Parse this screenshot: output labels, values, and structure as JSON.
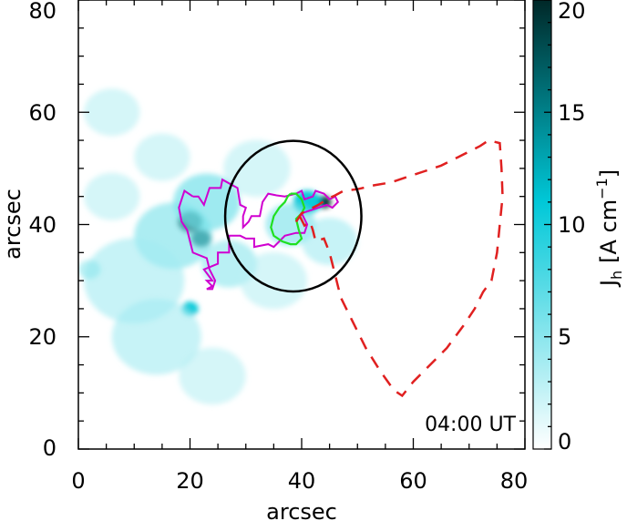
{
  "chart_data": {
    "type": "heatmap",
    "xlabel": "arcsec",
    "ylabel": "arcsec",
    "xlim": [
      0,
      80
    ],
    "ylim": [
      0,
      80
    ],
    "x_ticks": [
      "0",
      "20",
      "40",
      "60",
      "80"
    ],
    "y_ticks": [
      "0",
      "20",
      "40",
      "60",
      "80"
    ],
    "annotation": "04:00 UT",
    "colorbar": {
      "label_main": "J",
      "label_sub": "h",
      "label_units": "[A cm",
      "label_exp": "−1",
      "label_close": "]",
      "range": [
        0,
        20
      ],
      "ticks": [
        "0",
        "5",
        "10",
        "15",
        "20"
      ],
      "color_low": "#ffffff",
      "color_mid": "#00c8d8",
      "color_high": "#002828"
    },
    "blobs": [
      {
        "x": 20,
        "y": 40.5,
        "r": 2.2,
        "v": 20
      },
      {
        "x": 22,
        "y": 37.5,
        "r": 1.8,
        "v": 17
      },
      {
        "x": 20,
        "y": 25,
        "r": 1.5,
        "v": 11
      },
      {
        "x": 44,
        "y": 44,
        "r": 1.3,
        "v": 22
      },
      {
        "x": 41,
        "y": 44,
        "r": 2.5,
        "v": 11
      },
      {
        "x": 38,
        "y": 40,
        "r": 4.5,
        "v": 6
      },
      {
        "x": 23,
        "y": 44,
        "r": 6,
        "v": 7
      },
      {
        "x": 17,
        "y": 38,
        "r": 7,
        "v": 6
      },
      {
        "x": 10,
        "y": 30,
        "r": 9,
        "v": 4
      },
      {
        "x": 14,
        "y": 20,
        "r": 8,
        "v": 4
      },
      {
        "x": 27,
        "y": 33,
        "r": 5,
        "v": 5
      },
      {
        "x": 32,
        "y": 50,
        "r": 6,
        "v": 3
      },
      {
        "x": 45,
        "y": 37,
        "r": 5,
        "v": 4
      },
      {
        "x": 35,
        "y": 30,
        "r": 6,
        "v": 3
      },
      {
        "x": 6,
        "y": 45,
        "r": 5,
        "v": 3
      },
      {
        "x": 6,
        "y": 60,
        "r": 5,
        "v": 3
      },
      {
        "x": 15,
        "y": 52,
        "r": 5,
        "v": 3
      },
      {
        "x": 24,
        "y": 13,
        "r": 6,
        "v": 3
      },
      {
        "x": 2,
        "y": 32,
        "r": 2,
        "v": 5
      }
    ],
    "circle": {
      "cx": 38.5,
      "cy": 41.5,
      "rx": 12.2,
      "ry": 13.5,
      "color": "#000000"
    },
    "magenta_contour": {
      "color": "#d000d0",
      "x": [
        20.5,
        21.5,
        22.5,
        23.5,
        25.5,
        25.8,
        28.5,
        29,
        30,
        29.5,
        29.5,
        30.5,
        31,
        32.5,
        33,
        34,
        35.5,
        37,
        39,
        40,
        40.5,
        42,
        42.5,
        44,
        45,
        46,
        46.5,
        45.5,
        44.5,
        43,
        40,
        41,
        40.5,
        39,
        37,
        36,
        35,
        34,
        31.5,
        31.5,
        30,
        29,
        27,
        27,
        25,
        25,
        22.5,
        24,
        23,
        24,
        23,
        24,
        24.5,
        23.5,
        23,
        20.5,
        19.5,
        18.5,
        18,
        19,
        20.5
      ],
      "y": [
        45,
        45,
        43.5,
        46.5,
        46.5,
        48,
        46.5,
        43.5,
        43,
        41.5,
        39.5,
        40.5,
        41.5,
        41.5,
        44,
        45.5,
        45.2,
        45,
        45.5,
        46,
        44.5,
        45,
        46,
        45.5,
        44.5,
        45,
        44,
        43,
        43.5,
        43,
        42,
        40,
        38.5,
        38.5,
        38,
        37,
        36,
        36.5,
        36,
        37.5,
        37.5,
        38,
        38,
        35,
        35,
        33,
        32,
        30,
        30,
        29,
        28.5,
        28.5,
        30,
        32,
        34,
        35,
        39,
        40.5,
        43,
        46,
        45
      ]
    },
    "green_contour": {
      "color": "#20e020",
      "x": [
        38,
        39,
        40,
        40.5,
        40,
        39,
        39.5,
        40,
        39,
        38,
        36.5,
        35,
        34.5,
        35,
        36,
        37,
        37.5,
        38
      ],
      "y": [
        45.5,
        45.5,
        44.5,
        43,
        42,
        41,
        39,
        37.5,
        36.5,
        36.5,
        37,
        38,
        39.5,
        41.5,
        43,
        44,
        45,
        45.5
      ]
    },
    "red_dashed": {
      "color": "#e02020",
      "x": [
        39,
        40,
        41,
        43,
        44.5,
        46,
        47.5,
        50,
        53,
        56,
        59,
        62,
        65,
        68,
        70,
        72,
        73.5,
        75.5,
        75.8,
        76,
        75.5,
        75,
        74,
        72.5,
        71,
        69,
        66,
        63,
        60,
        58,
        56.5,
        54,
        51.5,
        49,
        47,
        46,
        45,
        44,
        42.5,
        42,
        41.5,
        40.5,
        39.5,
        39
      ],
      "y": [
        40.5,
        42,
        42.5,
        43.5,
        44.5,
        45.2,
        46,
        46.3,
        47,
        47.5,
        48.5,
        49.5,
        50.5,
        52,
        53,
        54,
        55,
        54.5,
        50,
        45,
        40,
        35,
        30,
        28,
        25,
        22,
        18,
        15,
        12,
        9.5,
        10.5,
        14,
        18,
        23,
        27,
        31,
        35,
        37.5,
        37,
        39,
        40.5,
        39.8,
        41.8,
        40.5
      ]
    }
  }
}
